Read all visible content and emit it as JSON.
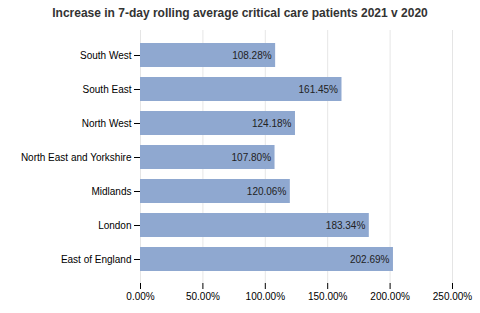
{
  "chart_data": {
    "type": "bar",
    "orientation": "horizontal",
    "title": "Increase in 7-day rolling average critical care patients 2021 v 2020",
    "categories": [
      "South West",
      "South East",
      "North West",
      "North East and Yorkshire",
      "Midlands",
      "London",
      "East of England"
    ],
    "values": [
      108.28,
      161.45,
      124.18,
      107.8,
      120.06,
      183.34,
      202.69
    ],
    "value_labels": [
      "108.28%",
      "161.45%",
      "124.18%",
      "107.80%",
      "120.06%",
      "183.34%",
      "202.69%"
    ],
    "data_labels": true,
    "color": "#8FA8D0",
    "xlim": [
      0,
      250
    ],
    "xticks": [
      {
        "value": 0,
        "label": "0.00%"
      },
      {
        "value": 50,
        "label": "50.00%"
      },
      {
        "value": 100,
        "label": "100.00%"
      },
      {
        "value": 150,
        "label": "150.00%"
      },
      {
        "value": 200,
        "label": "200.00%"
      },
      {
        "value": 250,
        "label": "250.00%"
      }
    ],
    "grid": true
  }
}
